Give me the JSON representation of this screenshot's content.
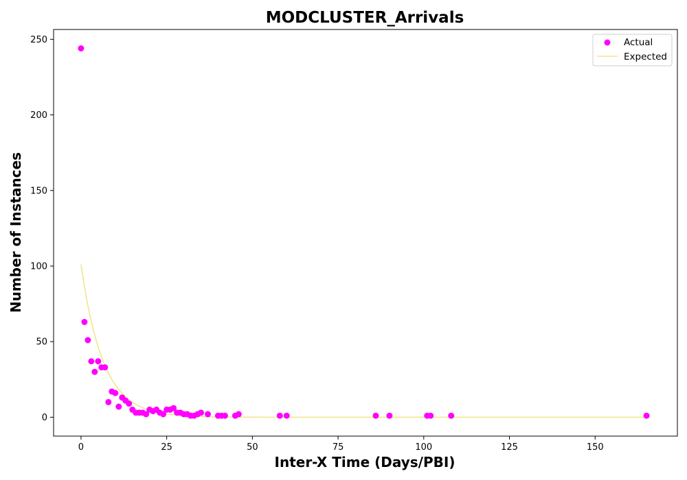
{
  "chart_data": {
    "type": "scatter",
    "title": "MODCLUSTER_Arrivals",
    "xlabel": "Inter-X Time (Days/PBI)",
    "ylabel": "Number of Instances",
    "xlim": [
      -8,
      174
    ],
    "ylim": [
      -12.5,
      256.5
    ],
    "xticks": [
      0,
      25,
      50,
      75,
      100,
      125,
      150
    ],
    "yticks": [
      0,
      50,
      100,
      150,
      200,
      250
    ],
    "grid": false,
    "legend_position": "top-right",
    "colors": {
      "actual": "#ff00ff",
      "expected": "#f0e68c"
    },
    "series": [
      {
        "name": "Actual",
        "kind": "scatter",
        "points": [
          [
            0,
            244
          ],
          [
            1,
            63
          ],
          [
            2,
            51
          ],
          [
            3,
            37
          ],
          [
            4,
            30
          ],
          [
            5,
            37
          ],
          [
            6,
            33
          ],
          [
            7,
            33
          ],
          [
            8,
            10
          ],
          [
            9,
            17
          ],
          [
            10,
            16
          ],
          [
            11,
            7
          ],
          [
            12,
            13
          ],
          [
            13,
            11
          ],
          [
            14,
            9
          ],
          [
            15,
            5
          ],
          [
            16,
            3
          ],
          [
            17,
            3
          ],
          [
            18,
            3
          ],
          [
            19,
            2
          ],
          [
            20,
            5
          ],
          [
            21,
            4
          ],
          [
            22,
            5
          ],
          [
            23,
            3
          ],
          [
            24,
            2
          ],
          [
            25,
            5
          ],
          [
            26,
            5
          ],
          [
            27,
            6
          ],
          [
            28,
            3
          ],
          [
            29,
            3
          ],
          [
            30,
            2
          ],
          [
            31,
            2
          ],
          [
            32,
            1
          ],
          [
            33,
            1
          ],
          [
            34,
            2
          ],
          [
            35,
            3
          ],
          [
            37,
            2
          ],
          [
            40,
            1
          ],
          [
            41,
            1
          ],
          [
            42,
            1
          ],
          [
            45,
            1
          ],
          [
            46,
            2
          ],
          [
            58,
            1
          ],
          [
            60,
            1
          ],
          [
            86,
            1
          ],
          [
            90,
            1
          ],
          [
            101,
            1
          ],
          [
            102,
            1
          ],
          [
            108,
            1
          ],
          [
            165,
            1
          ]
        ]
      },
      {
        "name": "Expected",
        "kind": "line",
        "model": "exponential",
        "amplitude": 101,
        "decay_rate": 0.155,
        "x_range": [
          0,
          165
        ]
      }
    ]
  }
}
